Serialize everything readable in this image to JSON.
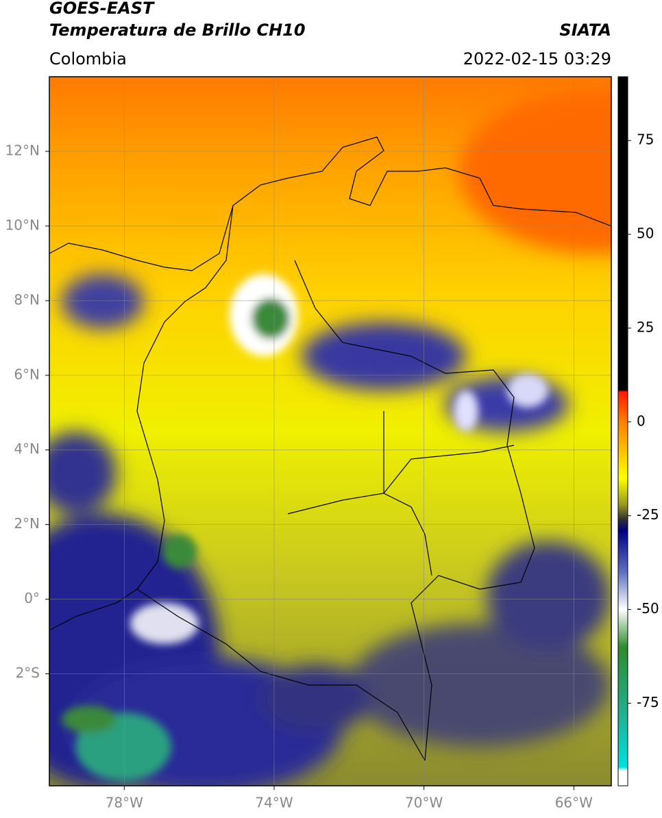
{
  "header": {
    "title": "GOES-EAST",
    "subtitle": "Temperatura de Brillo CH10",
    "source": "SIATA",
    "region": "Colombia",
    "datetime": "2022-02-15 03:29"
  },
  "map": {
    "lonlim": [
      -80,
      -65
    ],
    "latlim": [
      -5,
      14
    ],
    "lonticks": [
      {
        "value": -78,
        "label": "78°W"
      },
      {
        "value": -74,
        "label": "74°W"
      },
      {
        "value": -70,
        "label": "70°W"
      },
      {
        "value": -66,
        "label": "66°W"
      }
    ],
    "latticks": [
      {
        "value": 12,
        "label": "12°N"
      },
      {
        "value": 10,
        "label": "10°N"
      },
      {
        "value": 8,
        "label": "8°N"
      },
      {
        "value": 6,
        "label": "6°N"
      },
      {
        "value": 4,
        "label": "4°N"
      },
      {
        "value": 2,
        "label": "2°N"
      },
      {
        "value": 0,
        "label": "0°"
      },
      {
        "value": -2,
        "label": "2°S"
      }
    ]
  },
  "colorbar": {
    "lim": [
      -97,
      92
    ],
    "ticks": [
      75,
      50,
      25,
      0,
      -25,
      -50,
      -75
    ],
    "stops": [
      {
        "value": 92,
        "color": "#000000"
      },
      {
        "value": 8.5,
        "color": "#000000"
      },
      {
        "value": 8,
        "color": "#ff1a00"
      },
      {
        "value": 0,
        "color": "#ff8000"
      },
      {
        "value": -15,
        "color": "#ffff00"
      },
      {
        "value": -22,
        "color": "#9a9a20"
      },
      {
        "value": -26,
        "color": "#303030"
      },
      {
        "value": -29,
        "color": "#000080"
      },
      {
        "value": -40,
        "color": "#6070c0"
      },
      {
        "value": -50,
        "color": "#ffffff"
      },
      {
        "value": -60,
        "color": "#2e8b2e"
      },
      {
        "value": -78,
        "color": "#20b090"
      },
      {
        "value": -92,
        "color": "#00e0e0"
      },
      {
        "value": -93,
        "color": "#ffffff"
      },
      {
        "value": -97,
        "color": "#ffffff"
      }
    ]
  }
}
